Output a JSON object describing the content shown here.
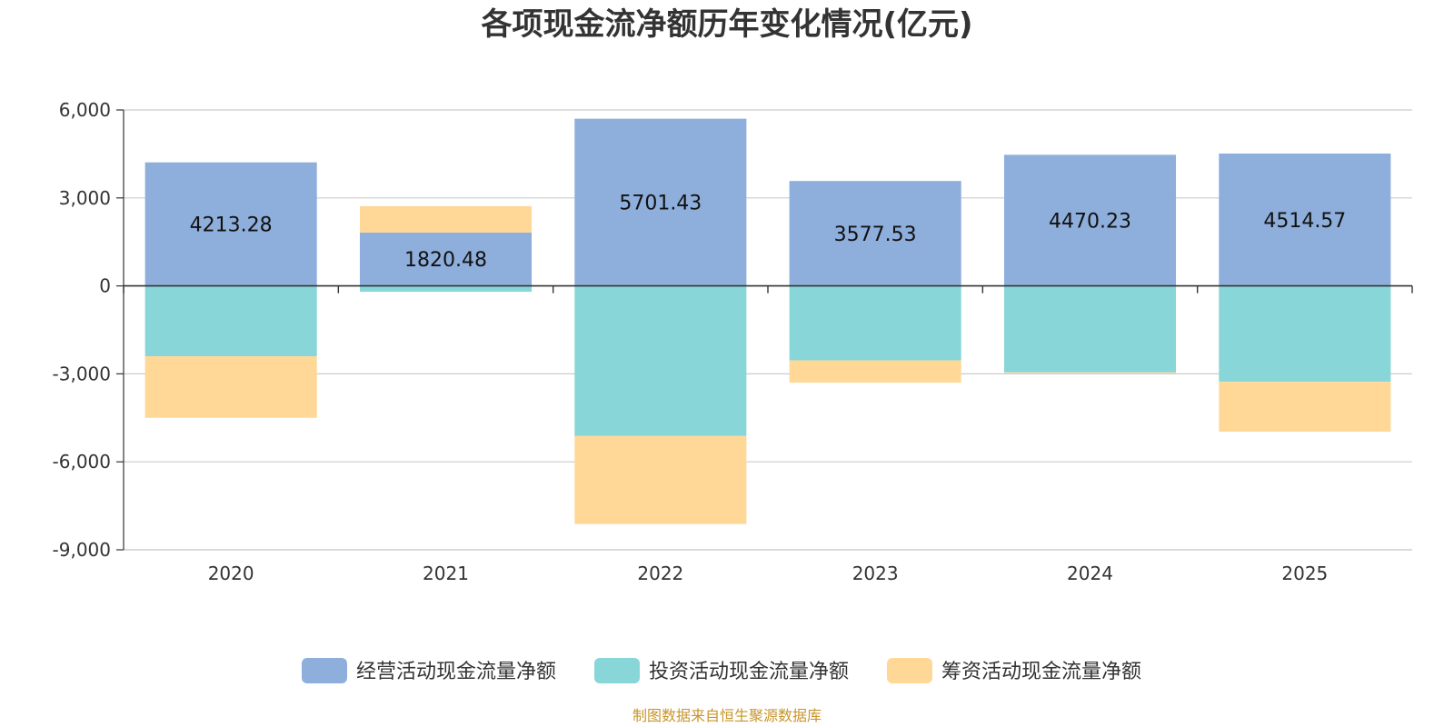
{
  "chart_data": {
    "type": "bar",
    "stacked": true,
    "title": "各项现金流净额历年变化情况(亿元)",
    "categories": [
      "2020",
      "2021",
      "2022",
      "2023",
      "2024",
      "2025"
    ],
    "ylim": [
      -9000,
      6000
    ],
    "yticks": [
      6000,
      3000,
      0,
      -3000,
      -6000,
      -9000
    ],
    "ytick_labels": [
      "6,000",
      "3,000",
      "0",
      "-3,000",
      "-6,000",
      "-9,000"
    ],
    "series": [
      {
        "name": "经营活动现金流量净额",
        "color": "#8eaedb",
        "values": [
          4213.28,
          1820.48,
          5701.43,
          3577.53,
          4470.23,
          4514.57
        ],
        "show_labels": true
      },
      {
        "name": "投资活动现金流量净额",
        "color": "#88d6d8",
        "values": [
          -2400,
          -200,
          -5120,
          -2540,
          -2950,
          -3270
        ],
        "show_labels": false
      },
      {
        "name": "筹资活动现金流量净额",
        "color": "#ffd897",
        "values": [
          -2100,
          900,
          -3000,
          -760,
          -30,
          -1700
        ],
        "show_labels": false
      }
    ],
    "legend_position": "bottom",
    "source": "制图数据来自恒生聚源数据库"
  }
}
